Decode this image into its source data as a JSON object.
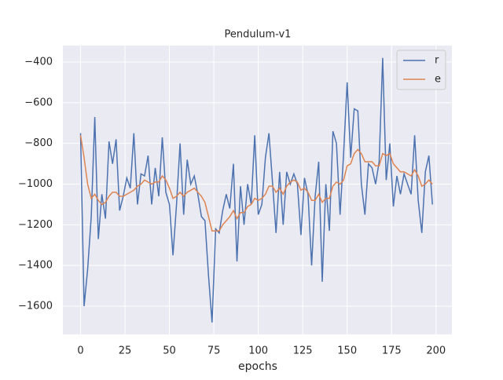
{
  "chart_data": {
    "type": "line",
    "title": "Pendulum-v1",
    "x_label": "epochs",
    "x": [
      0,
      2,
      4,
      6,
      8,
      10,
      12,
      14,
      16,
      18,
      20,
      22,
      24,
      26,
      28,
      30,
      32,
      34,
      36,
      38,
      40,
      42,
      44,
      46,
      48,
      50,
      52,
      54,
      56,
      58,
      60,
      62,
      64,
      66,
      68,
      70,
      72,
      74,
      76,
      78,
      80,
      82,
      84,
      86,
      88,
      90,
      92,
      94,
      96,
      98,
      100,
      102,
      104,
      106,
      108,
      110,
      112,
      114,
      116,
      118,
      120,
      122,
      124,
      126,
      128,
      130,
      132,
      134,
      136,
      138,
      140,
      142,
      144,
      146,
      148,
      150,
      152,
      154,
      156,
      158,
      160,
      162,
      164,
      166,
      168,
      170,
      172,
      174,
      176,
      178,
      180,
      182,
      184,
      186,
      188,
      190,
      192,
      194,
      196,
      198
    ],
    "series": [
      {
        "name": "r",
        "color": "#4c72b0",
        "values": [
          -750,
          -1600,
          -1420,
          -1160,
          -670,
          -1270,
          -1050,
          -1170,
          -790,
          -900,
          -780,
          -1130,
          -1060,
          -970,
          -1020,
          -750,
          -1100,
          -950,
          -960,
          -860,
          -1100,
          -920,
          -1060,
          -770,
          -1040,
          -1100,
          -1350,
          -1100,
          -800,
          -1150,
          -880,
          -1000,
          -960,
          -1050,
          -1160,
          -1180,
          -1450,
          -1680,
          -1220,
          -1240,
          -1130,
          -1050,
          -1120,
          -900,
          -1380,
          -1010,
          -1200,
          -1000,
          -1100,
          -760,
          -1150,
          -1100,
          -870,
          -750,
          -990,
          -1240,
          -940,
          -1200,
          -940,
          -1000,
          -950,
          -1000,
          -1250,
          -970,
          -1050,
          -1400,
          -1060,
          -890,
          -1480,
          -1000,
          -1230,
          -740,
          -800,
          -1150,
          -850,
          -500,
          -870,
          -630,
          -640,
          -1000,
          -1150,
          -900,
          -920,
          -1000,
          -890,
          -380,
          -980,
          -800,
          -1110,
          -960,
          -1050,
          -950,
          -1000,
          -1050,
          -760,
          -1080,
          -1240,
          -940,
          -860,
          -1100
        ]
      },
      {
        "name": "e",
        "color": "#dd8452",
        "values": [
          -760,
          -870,
          -1000,
          -1070,
          -1050,
          -1080,
          -1100,
          -1090,
          -1060,
          -1040,
          -1040,
          -1060,
          -1060,
          -1050,
          -1040,
          -1030,
          -1010,
          -1000,
          -980,
          -990,
          -1000,
          -990,
          -990,
          -960,
          -980,
          -1020,
          -1070,
          -1060,
          -1040,
          -1060,
          -1040,
          -1030,
          -1020,
          -1040,
          -1060,
          -1090,
          -1160,
          -1230,
          -1230,
          -1230,
          -1200,
          -1180,
          -1160,
          -1130,
          -1170,
          -1140,
          -1140,
          -1110,
          -1100,
          -1070,
          -1080,
          -1070,
          -1050,
          -1010,
          -1010,
          -1040,
          -1020,
          -1050,
          -1010,
          -990,
          -980,
          -990,
          -1030,
          -1020,
          -1040,
          -1080,
          -1080,
          -1050,
          -1090,
          -1070,
          -1070,
          -1010,
          -990,
          -1000,
          -980,
          -910,
          -900,
          -850,
          -830,
          -850,
          -890,
          -890,
          -890,
          -910,
          -910,
          -850,
          -860,
          -850,
          -900,
          -920,
          -940,
          -940,
          -950,
          -960,
          -930,
          -960,
          -1010,
          -1000,
          -980,
          -1000
        ]
      }
    ],
    "xlim": [
      -9.95,
      208.95
    ],
    "ylim": [
      -1739,
      -319
    ],
    "xticks": [
      0,
      25,
      50,
      75,
      100,
      125,
      150,
      175,
      200
    ],
    "yticks": [
      {
        "value": -1600,
        "label": "−1600"
      },
      {
        "value": -1400,
        "label": "−1400"
      },
      {
        "value": -1200,
        "label": "−1200"
      },
      {
        "value": -1000,
        "label": "−1000"
      },
      {
        "value": -800,
        "label": "−800"
      },
      {
        "value": -600,
        "label": "−600"
      },
      {
        "value": -400,
        "label": "−400"
      }
    ],
    "grid": true,
    "legend": "upper right"
  }
}
